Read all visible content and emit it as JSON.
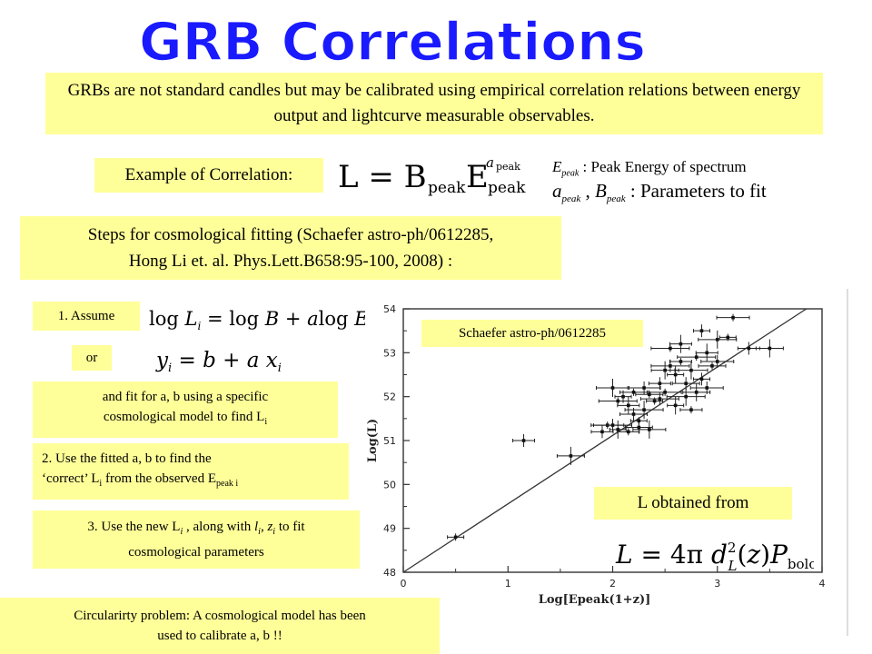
{
  "title": "GRB Correlations",
  "intro": "GRBs are not standard candles but may be calibrated using empirical correlation relations between energy output and lightcurve measurable observables.",
  "example_label": "Example of Correlation:",
  "eq_main": "L = B_peak E_peak^a_peak",
  "def1": ": Peak Energy of spectrum",
  "def2": ": Parameters to fit",
  "steps_line1": "Steps for cosmological fitting (Schaefer astro-ph/0612285,",
  "steps_line2": "Hong Li et. al. Phys.Lett.B658:95-100, 2008)   :",
  "step1": "1. Assume",
  "or": "or",
  "fit_line1": "and fit for a, b using a specific",
  "fit_line2": "cosmological model to find L",
  "step2_line1": "2. Use the fitted a, b to find the",
  "step2_line2": "‘correct’ L",
  "step2_line2b": " from the observed E",
  "step3_line1": "3. Use the new L",
  "step3_line2": "cosmological parameters",
  "circ_line1": "Circularirty problem: A cosmological model has been",
  "circ_line2": "used to calibrate  a, b  !!",
  "schaefer_label": "Schaefer astro-ph/0612285",
  "l_obtained": "L obtained from",
  "chart_data": {
    "type": "scatter",
    "xlabel": "Log[Epeak(1+z)]",
    "ylabel": "Log(L)",
    "xlim": [
      0,
      4
    ],
    "ylim": [
      48,
      54
    ],
    "xticks": [
      "0",
      "1",
      "2",
      "3",
      "4"
    ],
    "yticks": [
      "48",
      "49",
      "50",
      "51",
      "52",
      "53",
      "54"
    ],
    "fit_line": [
      [
        0,
        48.0
      ],
      [
        3.85,
        54.0
      ]
    ],
    "points": [
      {
        "x": 0.5,
        "y": 48.8
      },
      {
        "x": 1.15,
        "y": 51.0
      },
      {
        "x": 1.6,
        "y": 50.65
      },
      {
        "x": 1.95,
        "y": 51.35
      },
      {
        "x": 2.0,
        "y": 51.35
      },
      {
        "x": 2.05,
        "y": 51.25
      },
      {
        "x": 2.15,
        "y": 51.2
      },
      {
        "x": 2.25,
        "y": 51.3
      },
      {
        "x": 2.35,
        "y": 51.25
      },
      {
        "x": 2.05,
        "y": 51.9
      },
      {
        "x": 2.1,
        "y": 52.0
      },
      {
        "x": 2.15,
        "y": 51.8
      },
      {
        "x": 2.2,
        "y": 52.1
      },
      {
        "x": 2.3,
        "y": 52.2
      },
      {
        "x": 2.3,
        "y": 51.7
      },
      {
        "x": 2.4,
        "y": 51.9
      },
      {
        "x": 2.45,
        "y": 52.3
      },
      {
        "x": 2.5,
        "y": 52.6
      },
      {
        "x": 2.5,
        "y": 52.1
      },
      {
        "x": 2.55,
        "y": 52.7
      },
      {
        "x": 2.6,
        "y": 52.5
      },
      {
        "x": 2.65,
        "y": 52.8
      },
      {
        "x": 2.7,
        "y": 52.3
      },
      {
        "x": 2.75,
        "y": 52.6
      },
      {
        "x": 2.8,
        "y": 52.9
      },
      {
        "x": 2.85,
        "y": 52.4
      },
      {
        "x": 2.9,
        "y": 53.0
      },
      {
        "x": 2.95,
        "y": 52.7
      },
      {
        "x": 3.0,
        "y": 52.8
      },
      {
        "x": 3.0,
        "y": 53.3
      },
      {
        "x": 3.1,
        "y": 53.35
      },
      {
        "x": 3.3,
        "y": 53.1
      },
      {
        "x": 3.5,
        "y": 53.1
      },
      {
        "x": 3.15,
        "y": 53.8
      },
      {
        "x": 2.45,
        "y": 51.95
      },
      {
        "x": 2.6,
        "y": 51.8
      },
      {
        "x": 2.75,
        "y": 51.7
      },
      {
        "x": 2.2,
        "y": 51.6
      },
      {
        "x": 2.0,
        "y": 52.2
      },
      {
        "x": 2.55,
        "y": 53.1
      },
      {
        "x": 2.85,
        "y": 53.5
      },
      {
        "x": 2.65,
        "y": 53.2
      },
      {
        "x": 2.35,
        "y": 52.05
      },
      {
        "x": 2.9,
        "y": 52.2
      },
      {
        "x": 2.7,
        "y": 52.0
      },
      {
        "x": 2.25,
        "y": 51.45
      },
      {
        "x": 1.9,
        "y": 51.2
      },
      {
        "x": 2.8,
        "y": 52.1
      }
    ]
  }
}
